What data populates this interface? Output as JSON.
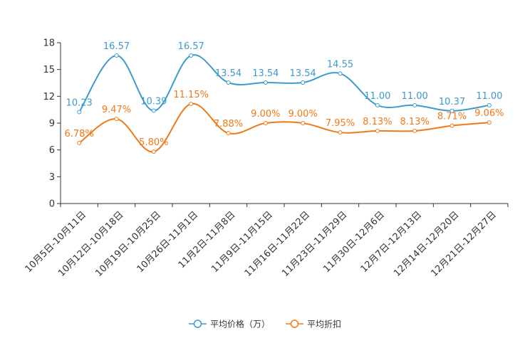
{
  "chart_data": {
    "type": "line",
    "title": "",
    "xlabel": "",
    "ylabel": "",
    "categories": [
      "10月5日-10月11日",
      "10月12日-10月18日",
      "10月19日-10月25日",
      "10月26日-11月1日",
      "11月2日-11月8日",
      "11月9日-11月15日",
      "11月16日-11月22日",
      "11月23日-11月29日",
      "11月30日-12月6日",
      "12月7日-12月13日",
      "12月14日-12月20日",
      "12月21日-12月27日"
    ],
    "ylim": [
      0,
      18
    ],
    "yticks": [
      0,
      3,
      6,
      9,
      12,
      15,
      18
    ],
    "grid": false,
    "legend_position": "bottom-center",
    "series": [
      {
        "name": "平均价格（万）",
        "color": "#3d9bcb",
        "values": [
          10.23,
          16.57,
          10.39,
          16.57,
          13.54,
          13.54,
          13.54,
          14.55,
          11.0,
          11.0,
          10.37,
          11.0
        ],
        "labels": [
          "10.23",
          "16.57",
          "10.39",
          "16.57",
          "13.54",
          "13.54",
          "13.54",
          "14.55",
          "11.00",
          "11.00",
          "10.37",
          "11.00"
        ]
      },
      {
        "name": "平均折扣",
        "color": "#f07918",
        "values": [
          6.78,
          9.47,
          5.8,
          11.15,
          7.88,
          9.0,
          9.0,
          7.95,
          8.13,
          8.13,
          8.71,
          9.06
        ],
        "labels": [
          "6.78%",
          "9.47%",
          "5.80%",
          "11.15%",
          "7.88%",
          "9.00%",
          "9.00%",
          "7.95%",
          "8.13%",
          "8.13%",
          "8.71%",
          "9.06%"
        ]
      }
    ]
  }
}
